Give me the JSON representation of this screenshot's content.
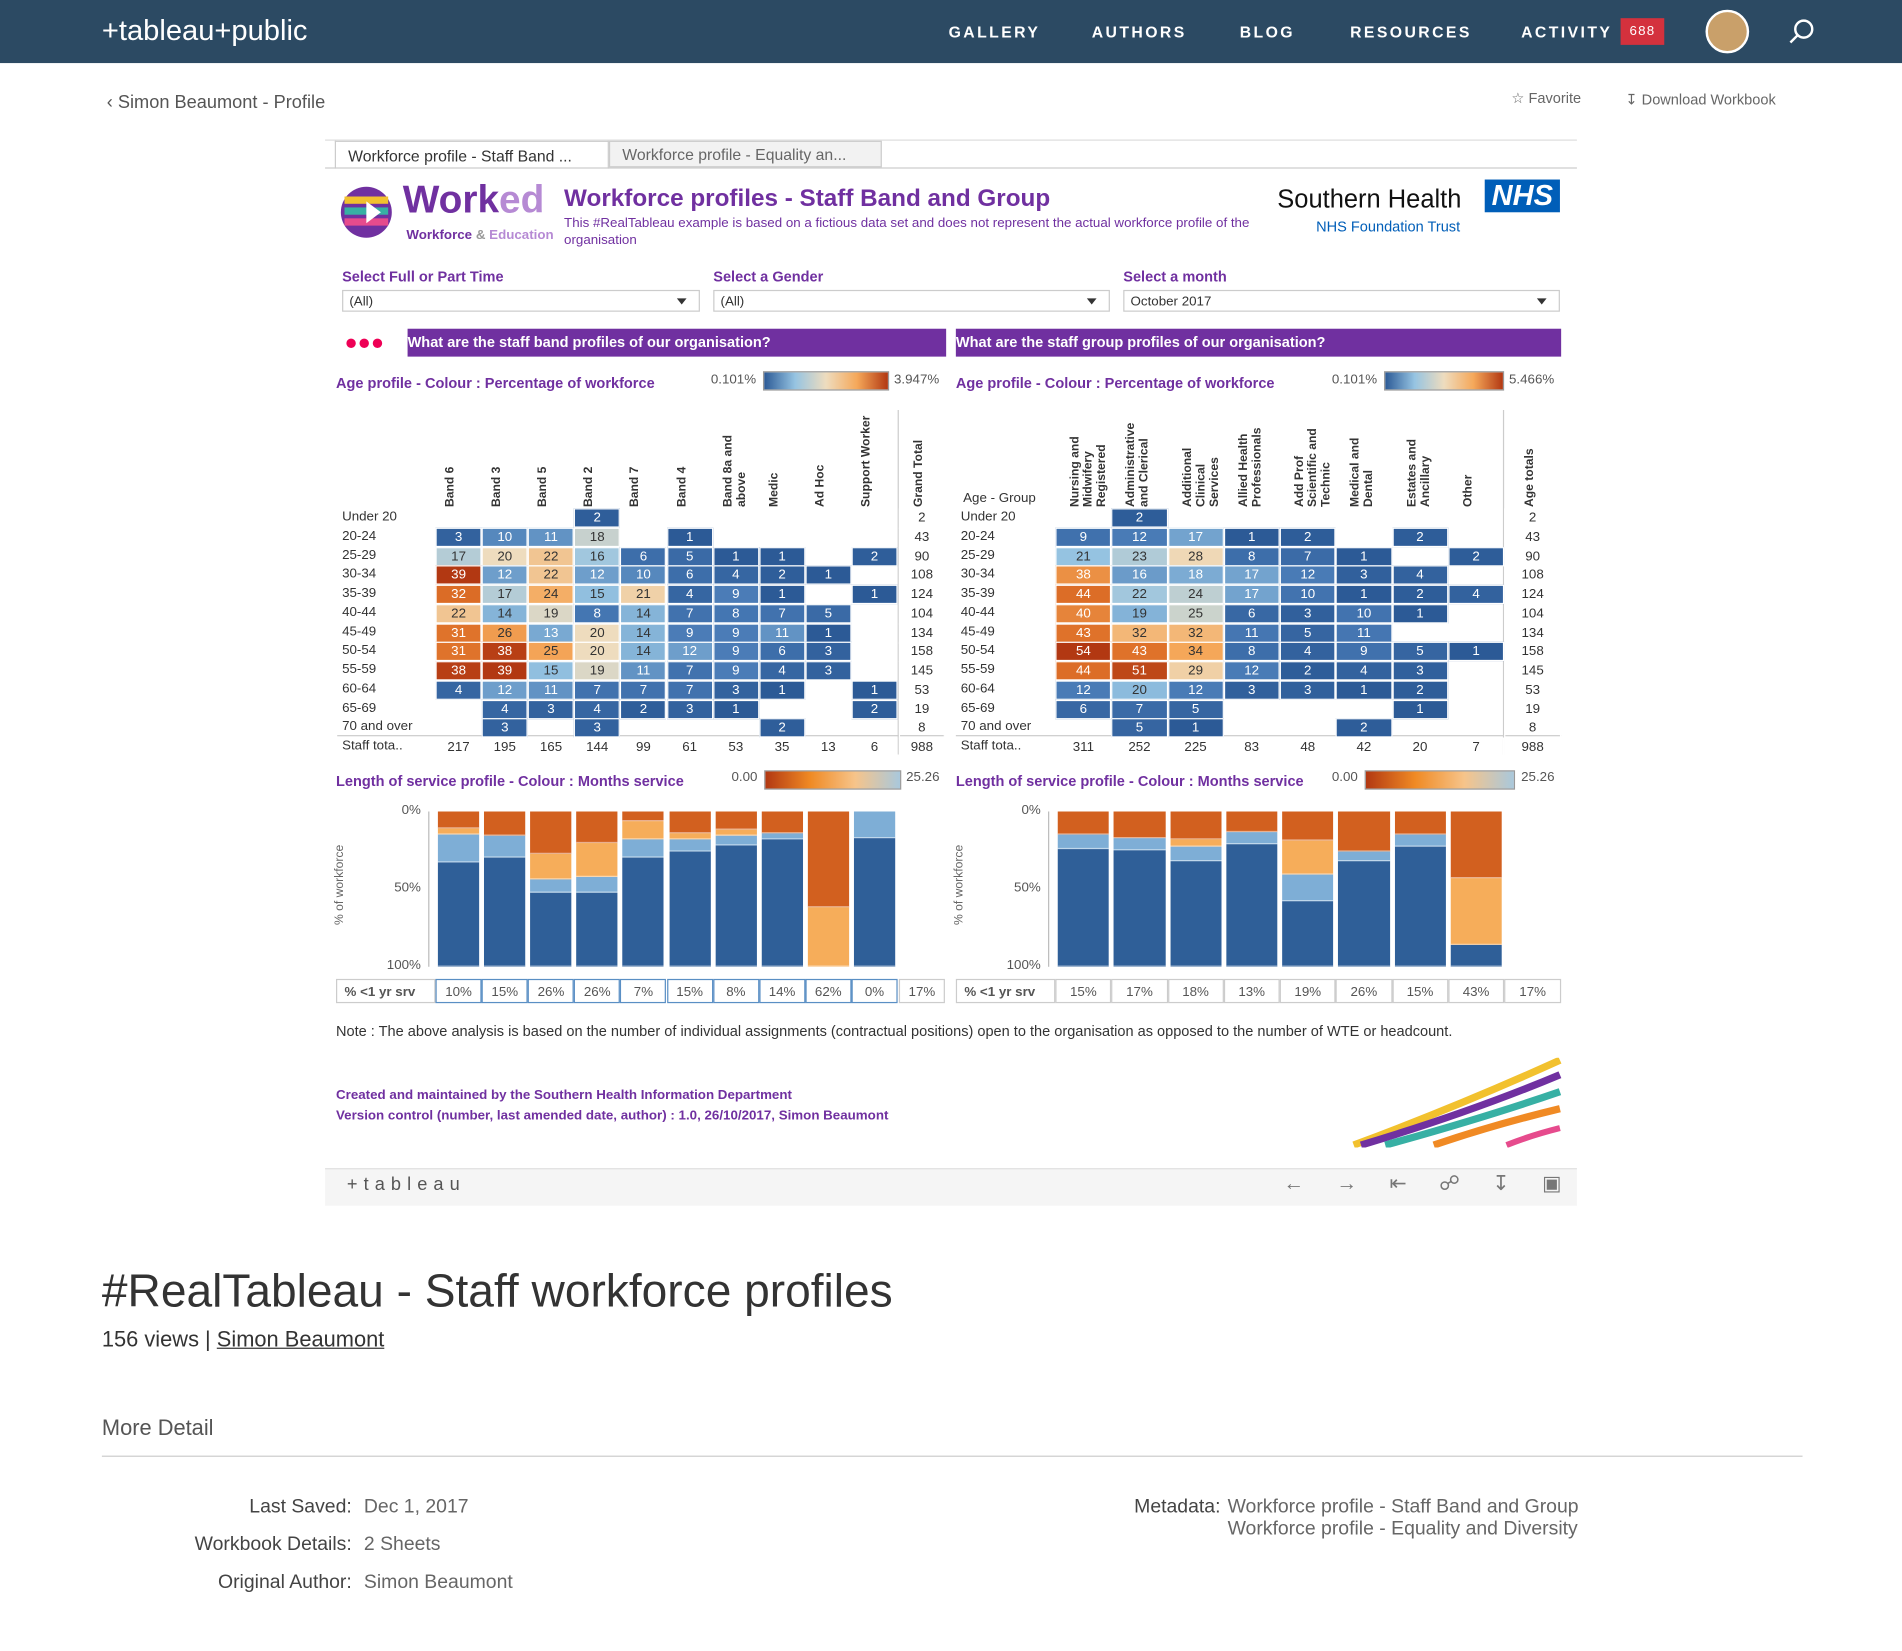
{
  "nav": {
    "logo": "+tableau+public",
    "items": [
      "GALLERY",
      "AUTHORS",
      "BLOG",
      "RESOURCES",
      "ACTIVITY"
    ],
    "badge": "688"
  },
  "breadcrumb": "Simon Beaumont - Profile",
  "actions": [
    "Favorite",
    "Download Workbook"
  ],
  "tabs": [
    "Workforce profile - Staff Band ...",
    "Workforce profile - Equality an..."
  ],
  "dashboard": {
    "logo_main": "Work",
    "logo_suffix": "ed",
    "logo_sub": "Workforce",
    "logo_amp": "&",
    "logo_sub2": "Education",
    "title": "Workforce profiles - Staff Band and Group",
    "subtitle": "This #RealTableau example is based on a fictious data set and does not represent the actual workforce profile of the organisation",
    "org": "Southern Health",
    "nhs": "NHS",
    "trust": "NHS Foundation Trust",
    "filters": [
      {
        "label": "Select Full or Part Time",
        "value": "(All)"
      },
      {
        "label": "Select a Gender",
        "value": "(All)"
      },
      {
        "label": "Select a month",
        "value": "October 2017"
      }
    ],
    "age_groups": [
      "Under 20",
      "20-24",
      "25-29",
      "30-34",
      "35-39",
      "40-44",
      "45-49",
      "50-54",
      "55-59",
      "60-64",
      "65-69",
      "70 and over"
    ],
    "segment_colors": [
      "#d2601f",
      "#f6ad5a",
      "#7eaed6",
      "#2f5f98"
    ],
    "panels": [
      {
        "question": "What are the staff band profiles of our organisation?",
        "heat_title": "Age profile - Colour : Percentage of workforce",
        "legend_min": "0.101%",
        "legend_max": "3.947%",
        "row_header": null,
        "columns": [
          "Band 6",
          "Band 3",
          "Band 5",
          "Band 2",
          "Band 7",
          "Band 4",
          "Band 8a and above",
          "Medic",
          "Ad Hoc",
          "Support Worker"
        ],
        "total_header": "Grand Total",
        "values": [
          [
            null,
            null,
            null,
            2,
            null,
            null,
            null,
            null,
            null,
            null
          ],
          [
            3,
            10,
            11,
            18,
            null,
            1,
            null,
            null,
            null,
            null
          ],
          [
            17,
            20,
            22,
            16,
            6,
            5,
            1,
            1,
            null,
            2
          ],
          [
            39,
            12,
            22,
            12,
            10,
            6,
            4,
            2,
            1,
            null
          ],
          [
            32,
            17,
            24,
            15,
            21,
            4,
            9,
            1,
            null,
            1
          ],
          [
            22,
            14,
            19,
            8,
            14,
            7,
            8,
            7,
            5,
            null
          ],
          [
            31,
            26,
            13,
            20,
            14,
            9,
            9,
            11,
            1,
            null
          ],
          [
            31,
            38,
            25,
            20,
            14,
            12,
            9,
            6,
            3,
            null
          ],
          [
            38,
            39,
            15,
            19,
            11,
            7,
            9,
            4,
            3,
            null
          ],
          [
            4,
            12,
            11,
            7,
            7,
            7,
            3,
            1,
            null,
            1
          ],
          [
            null,
            4,
            3,
            4,
            2,
            3,
            1,
            null,
            null,
            2
          ],
          [
            null,
            3,
            null,
            3,
            null,
            null,
            null,
            2,
            null,
            null
          ]
        ],
        "row_totals": [
          2,
          43,
          90,
          108,
          124,
          104,
          134,
          158,
          145,
          53,
          19,
          8
        ],
        "total_label": "Staff tota..",
        "col_totals": [
          217,
          195,
          165,
          144,
          99,
          61,
          53,
          35,
          13,
          6
        ],
        "grand_total": 988,
        "service_title": "Length of service profile - Colour : Months service",
        "service_min": "0.00",
        "service_max": "25.26",
        "y_label": "% of workforce",
        "yticks": [
          "0%",
          "50%",
          "100%"
        ],
        "service_mix": [
          [
            11,
            4,
            18,
            67
          ],
          [
            16,
            0,
            14,
            70
          ],
          [
            27,
            17,
            8,
            48
          ],
          [
            20,
            22,
            10,
            48
          ],
          [
            6,
            12,
            12,
            70
          ],
          [
            14,
            4,
            8,
            74
          ],
          [
            12,
            4,
            6,
            78
          ],
          [
            14,
            0,
            4,
            82
          ],
          [
            62,
            38,
            0,
            0
          ],
          [
            0,
            0,
            17,
            83
          ]
        ],
        "footer_label": "% <1 yr srv",
        "footer": [
          "10%",
          "15%",
          "26%",
          "26%",
          "7%",
          "15%",
          "8%",
          "14%",
          "62%",
          "0%"
        ],
        "footer_total": "17%"
      },
      {
        "question": "What are the staff group profiles of our organisation?",
        "heat_title": "Age profile - Colour : Percentage of workforce",
        "legend_min": "0.101%",
        "legend_max": "5.466%",
        "row_header": "Age - Group",
        "columns": [
          "Nursing and Midwifery Registered",
          "Administrative and Clerical",
          "Additional Clinical Services",
          "Allied Health Professionals",
          "Add Prof Scientific and Technic",
          "Medical and Dental",
          "Estates and Ancillary",
          "Other"
        ],
        "total_header": "Age totals",
        "values": [
          [
            null,
            2,
            null,
            null,
            null,
            null,
            null,
            null
          ],
          [
            9,
            12,
            17,
            1,
            2,
            null,
            2,
            null
          ],
          [
            21,
            23,
            28,
            8,
            7,
            1,
            null,
            2
          ],
          [
            38,
            16,
            18,
            17,
            12,
            3,
            4,
            null
          ],
          [
            44,
            22,
            24,
            17,
            10,
            1,
            2,
            4
          ],
          [
            40,
            19,
            25,
            6,
            3,
            10,
            1,
            null
          ],
          [
            43,
            32,
            32,
            11,
            5,
            11,
            null,
            null
          ],
          [
            54,
            43,
            34,
            8,
            4,
            9,
            5,
            1
          ],
          [
            44,
            51,
            29,
            12,
            2,
            4,
            3,
            null
          ],
          [
            12,
            20,
            12,
            3,
            3,
            1,
            2,
            null
          ],
          [
            6,
            7,
            5,
            null,
            null,
            null,
            1,
            null
          ],
          [
            null,
            5,
            1,
            null,
            null,
            2,
            null,
            null
          ]
        ],
        "row_totals": [
          2,
          43,
          90,
          108,
          124,
          104,
          134,
          158,
          145,
          53,
          19,
          8
        ],
        "total_label": "Staff tota..",
        "col_totals": [
          311,
          252,
          225,
          83,
          48,
          42,
          20,
          7
        ],
        "grand_total": 988,
        "service_title": "Length of service profile - Colour : Months service",
        "service_min": "0.00",
        "service_max": "25.26",
        "y_label": "% of workforce",
        "yticks": [
          "0%",
          "50%",
          "100%"
        ],
        "service_mix": [
          [
            15,
            0,
            9,
            76
          ],
          [
            17,
            0,
            8,
            75
          ],
          [
            18,
            5,
            9,
            68
          ],
          [
            13,
            0,
            8,
            79
          ],
          [
            19,
            22,
            17,
            42
          ],
          [
            26,
            0,
            6,
            68
          ],
          [
            15,
            0,
            8,
            77
          ],
          [
            43,
            43,
            0,
            14
          ]
        ],
        "footer_label": "% <1 yr srv",
        "footer": [
          "15%",
          "17%",
          "18%",
          "13%",
          "19%",
          "26%",
          "15%",
          "43%"
        ],
        "footer_total": "17%"
      }
    ],
    "note": "Note : The above analysis is based on the number of individual assignments (contractual positions) open to the organisation as opposed to the number of WTE or headcount.",
    "created": "Created and maintained by the Southern Health Information Department",
    "version": "Version control (number, last amended date, author) : 1.0, 26/10/2017, Simon Beaumont",
    "toolbar_logo": "+tableau"
  },
  "page": {
    "title": "#RealTableau - Staff workforce profiles",
    "views": "156 views |",
    "author": "Simon Beaumont",
    "more": "More Detail",
    "details": [
      {
        "label": "Last Saved:",
        "value": "Dec 1, 2017"
      },
      {
        "label": "Workbook Details:",
        "value": "2 Sheets"
      },
      {
        "label": "Original Author:",
        "value": "Simon Beaumont"
      }
    ],
    "metadata_label": "Metadata:",
    "metadata": [
      "Workforce profile - Staff Band and Group",
      "Workforce profile - Equality and Diversity"
    ]
  }
}
